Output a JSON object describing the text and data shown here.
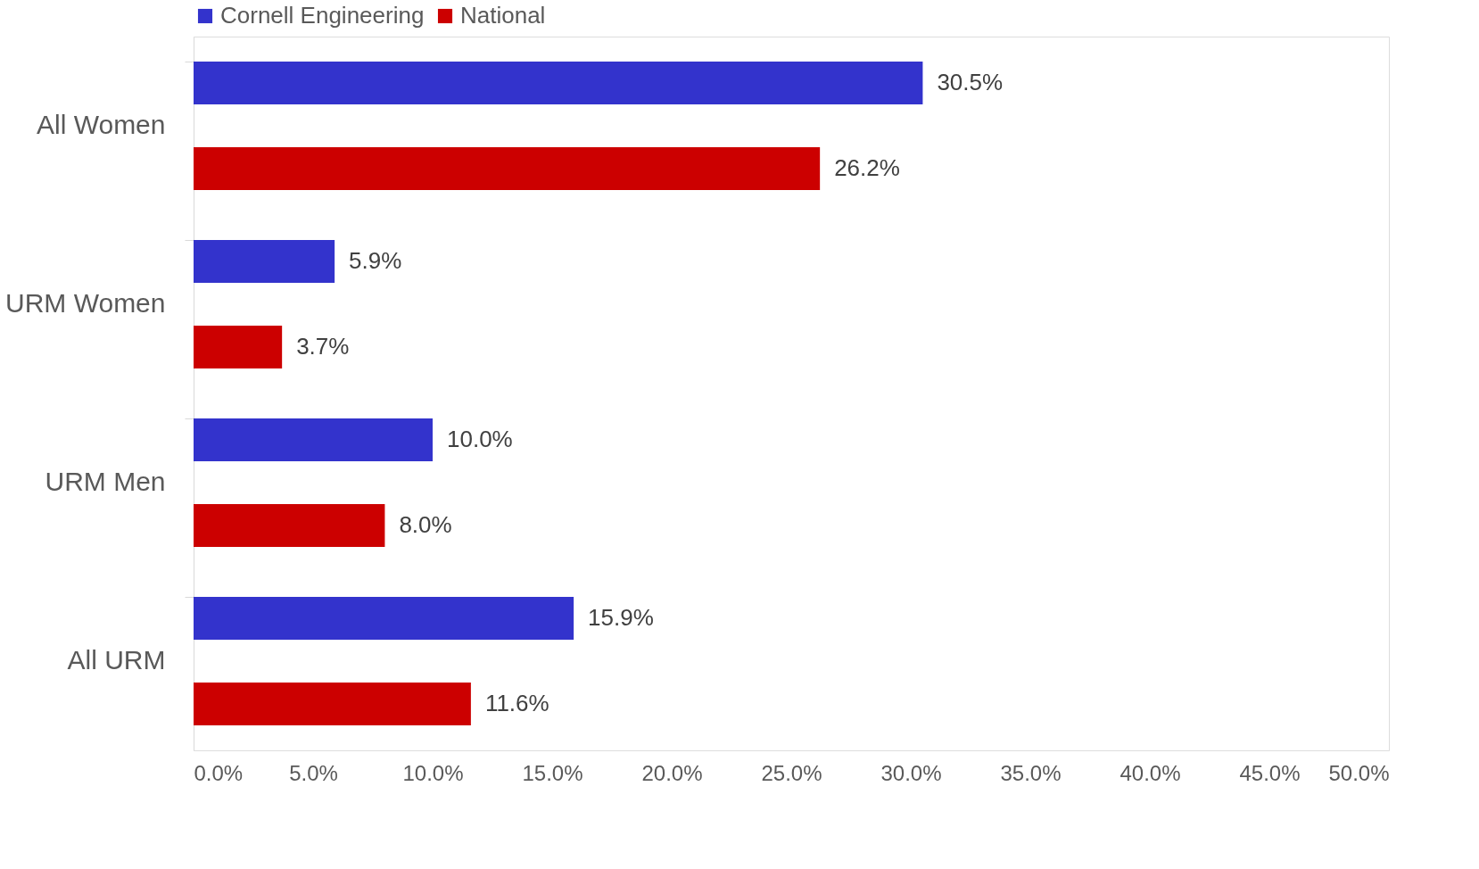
{
  "chart_data": {
    "type": "bar",
    "orientation": "horizontal",
    "categories": [
      "All Women",
      "URM Women",
      "URM Men",
      "All URM"
    ],
    "series": [
      {
        "name": "Cornell Engineering",
        "color": "#3333cc",
        "values": [
          30.5,
          5.9,
          10.0,
          15.9
        ],
        "value_labels": [
          "30.5%",
          "5.9%",
          "10.0%",
          "15.9%"
        ]
      },
      {
        "name": "National",
        "color": "#cc0000",
        "values": [
          26.2,
          3.7,
          8.0,
          11.6
        ],
        "value_labels": [
          "26.2%",
          "3.7%",
          "8.0%",
          "11.6%"
        ]
      }
    ],
    "xlim": [
      0,
      50
    ],
    "xticks": [
      {
        "value": 0,
        "label": "0.0%"
      },
      {
        "value": 5,
        "label": "5.0%"
      },
      {
        "value": 10,
        "label": "10.0%"
      },
      {
        "value": 15,
        "label": "15.0%"
      },
      {
        "value": 20,
        "label": "20.0%"
      },
      {
        "value": 25,
        "label": "25.0%"
      },
      {
        "value": 30,
        "label": "30.0%"
      },
      {
        "value": 35,
        "label": "35.0%"
      },
      {
        "value": 40,
        "label": "40.0%"
      },
      {
        "value": 45,
        "label": "45.0%"
      },
      {
        "value": 50,
        "label": "50.0%"
      }
    ],
    "legend": "top",
    "grid": false
  }
}
